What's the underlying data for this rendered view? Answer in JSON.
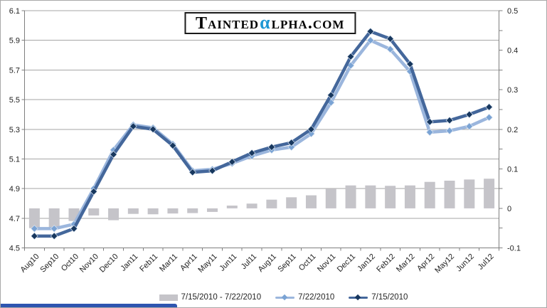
{
  "logo": {
    "prefix": "Tainted",
    "alpha": "α",
    "suffix": "lpha.com"
  },
  "chart_data": {
    "type": "combo",
    "title": "",
    "grid": true,
    "legend_position": "bottom",
    "categories": [
      "Aug10",
      "Sep10",
      "Oct10",
      "Nov10",
      "Dec10",
      "Jan11",
      "Feb11",
      "Mar11",
      "Apr11",
      "May11",
      "Jun11",
      "Jul11",
      "Aug11",
      "Sep11",
      "Oct11",
      "Nov11",
      "Dec11",
      "Jan12",
      "Feb12",
      "Mar12",
      "Apr12",
      "May12",
      "Jun12",
      "Jul12"
    ],
    "series": [
      {
        "name": "7/15/2010 - 7/22/2010",
        "type": "bar",
        "axis": "right",
        "color": "#c5c4c9",
        "values": [
          -0.05,
          -0.05,
          -0.032,
          -0.018,
          -0.03,
          -0.014,
          -0.015,
          -0.013,
          -0.012,
          -0.009,
          0.007,
          0.012,
          0.022,
          0.028,
          0.033,
          0.05,
          0.058,
          0.058,
          0.057,
          0.058,
          0.067,
          0.07,
          0.073,
          0.075
        ]
      },
      {
        "name": "7/22/2010",
        "type": "line",
        "axis": "left",
        "color": "#9bb6dd",
        "marker_color": "#7aa3d4",
        "values": [
          4.63,
          4.63,
          4.66,
          4.9,
          5.16,
          5.33,
          5.31,
          5.2,
          5.02,
          5.03,
          5.07,
          5.12,
          5.16,
          5.18,
          5.27,
          5.48,
          5.73,
          5.9,
          5.84,
          5.69,
          5.28,
          5.29,
          5.32,
          5.38
        ]
      },
      {
        "name": "7/15/2010",
        "type": "line",
        "axis": "left",
        "color": "#44679b",
        "marker_color": "#17375e",
        "values": [
          4.58,
          4.58,
          4.63,
          4.88,
          5.13,
          5.32,
          5.3,
          5.19,
          5.01,
          5.02,
          5.08,
          5.14,
          5.18,
          5.21,
          5.3,
          5.53,
          5.79,
          5.96,
          5.91,
          5.74,
          5.35,
          5.36,
          5.4,
          5.45
        ]
      }
    ],
    "axes": {
      "left": {
        "min": 4.5,
        "max": 6.1,
        "step": 0.2,
        "labels": [
          "6.1",
          "5.9",
          "5.7",
          "5.5",
          "5.3",
          "5.1",
          "4.9",
          "4.7",
          "4.5"
        ]
      },
      "right": {
        "min": -0.1,
        "max": 0.5,
        "step": 0.1,
        "labels": [
          "0.5",
          "0.4",
          "0.3",
          "0.2",
          "0.1",
          "0",
          "-0.1"
        ]
      }
    },
    "style": {
      "gridline_color": "#a6a6a6",
      "axis_color": "#7f7f7f",
      "label_color": "#1f1f1f"
    }
  }
}
